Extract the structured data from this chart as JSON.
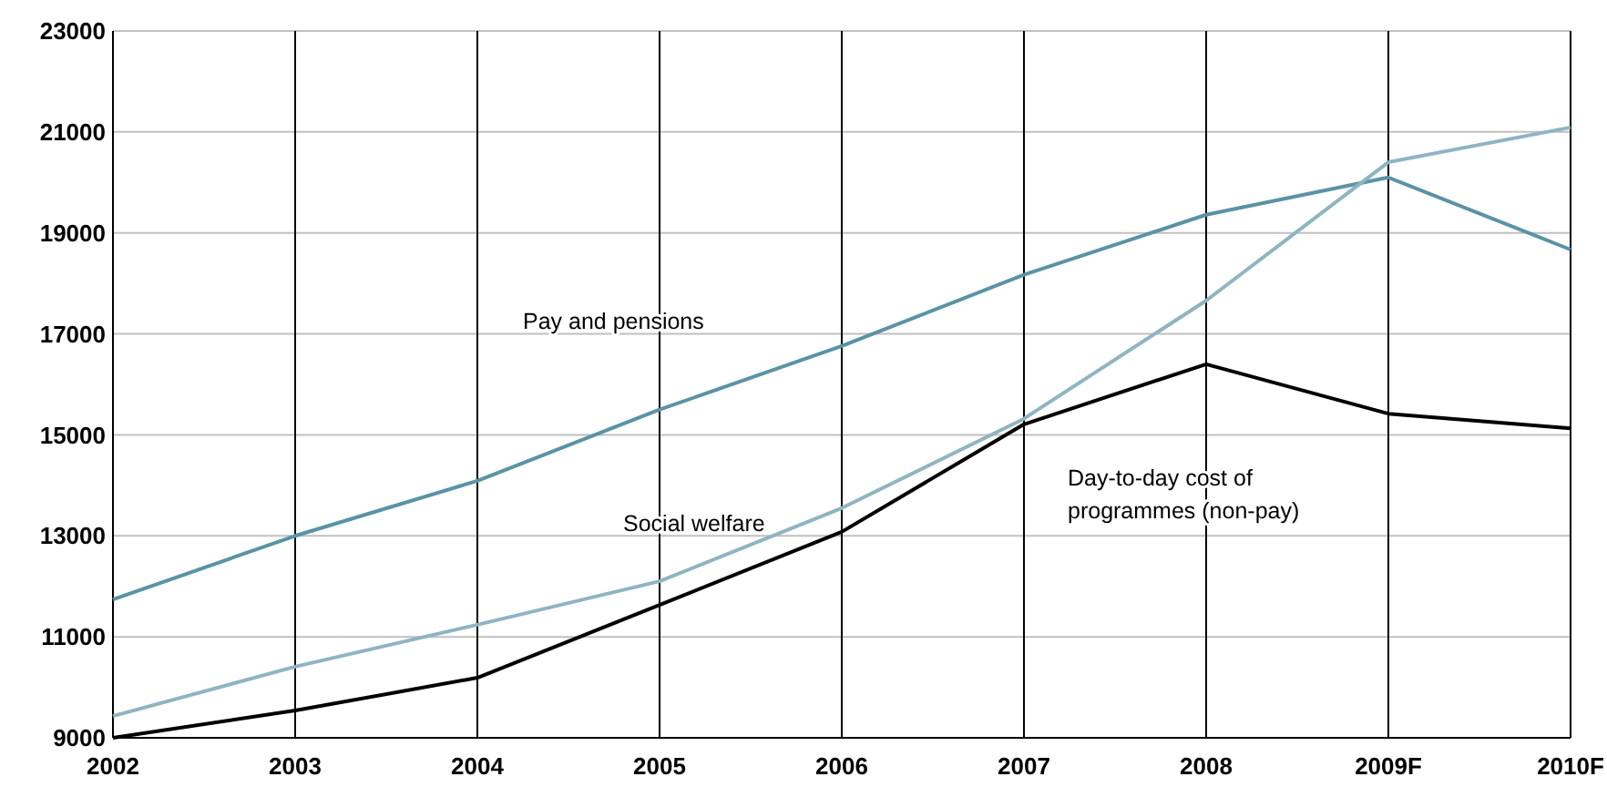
{
  "chart_data": {
    "type": "line",
    "categories": [
      "2002",
      "2003",
      "2004",
      "2005",
      "2006",
      "2007",
      "2008",
      "2009F",
      "2010F"
    ],
    "series": [
      {
        "name": "Pay and pensions",
        "color": "#5a93a4",
        "values": [
          11740,
          13000,
          14090,
          15500,
          16760,
          18170,
          19360,
          20100,
          18670
        ]
      },
      {
        "name": "Social welfare",
        "color": "#8fb4c2",
        "values": [
          9430,
          10410,
          11240,
          12100,
          13550,
          15320,
          17660,
          20400,
          21090
        ]
      },
      {
        "name": "Day-to-day cost of programmes (non-pay)",
        "color": "#000000",
        "values": [
          9000,
          9540,
          10190,
          11630,
          13080,
          15210,
          16400,
          15420,
          15130
        ]
      }
    ],
    "ylim": [
      9000,
      23000
    ],
    "yticks": [
      9000,
      11000,
      13000,
      15000,
      17000,
      19000,
      21000,
      23000
    ],
    "grid": true,
    "marker": "none",
    "line_style": "solid"
  }
}
